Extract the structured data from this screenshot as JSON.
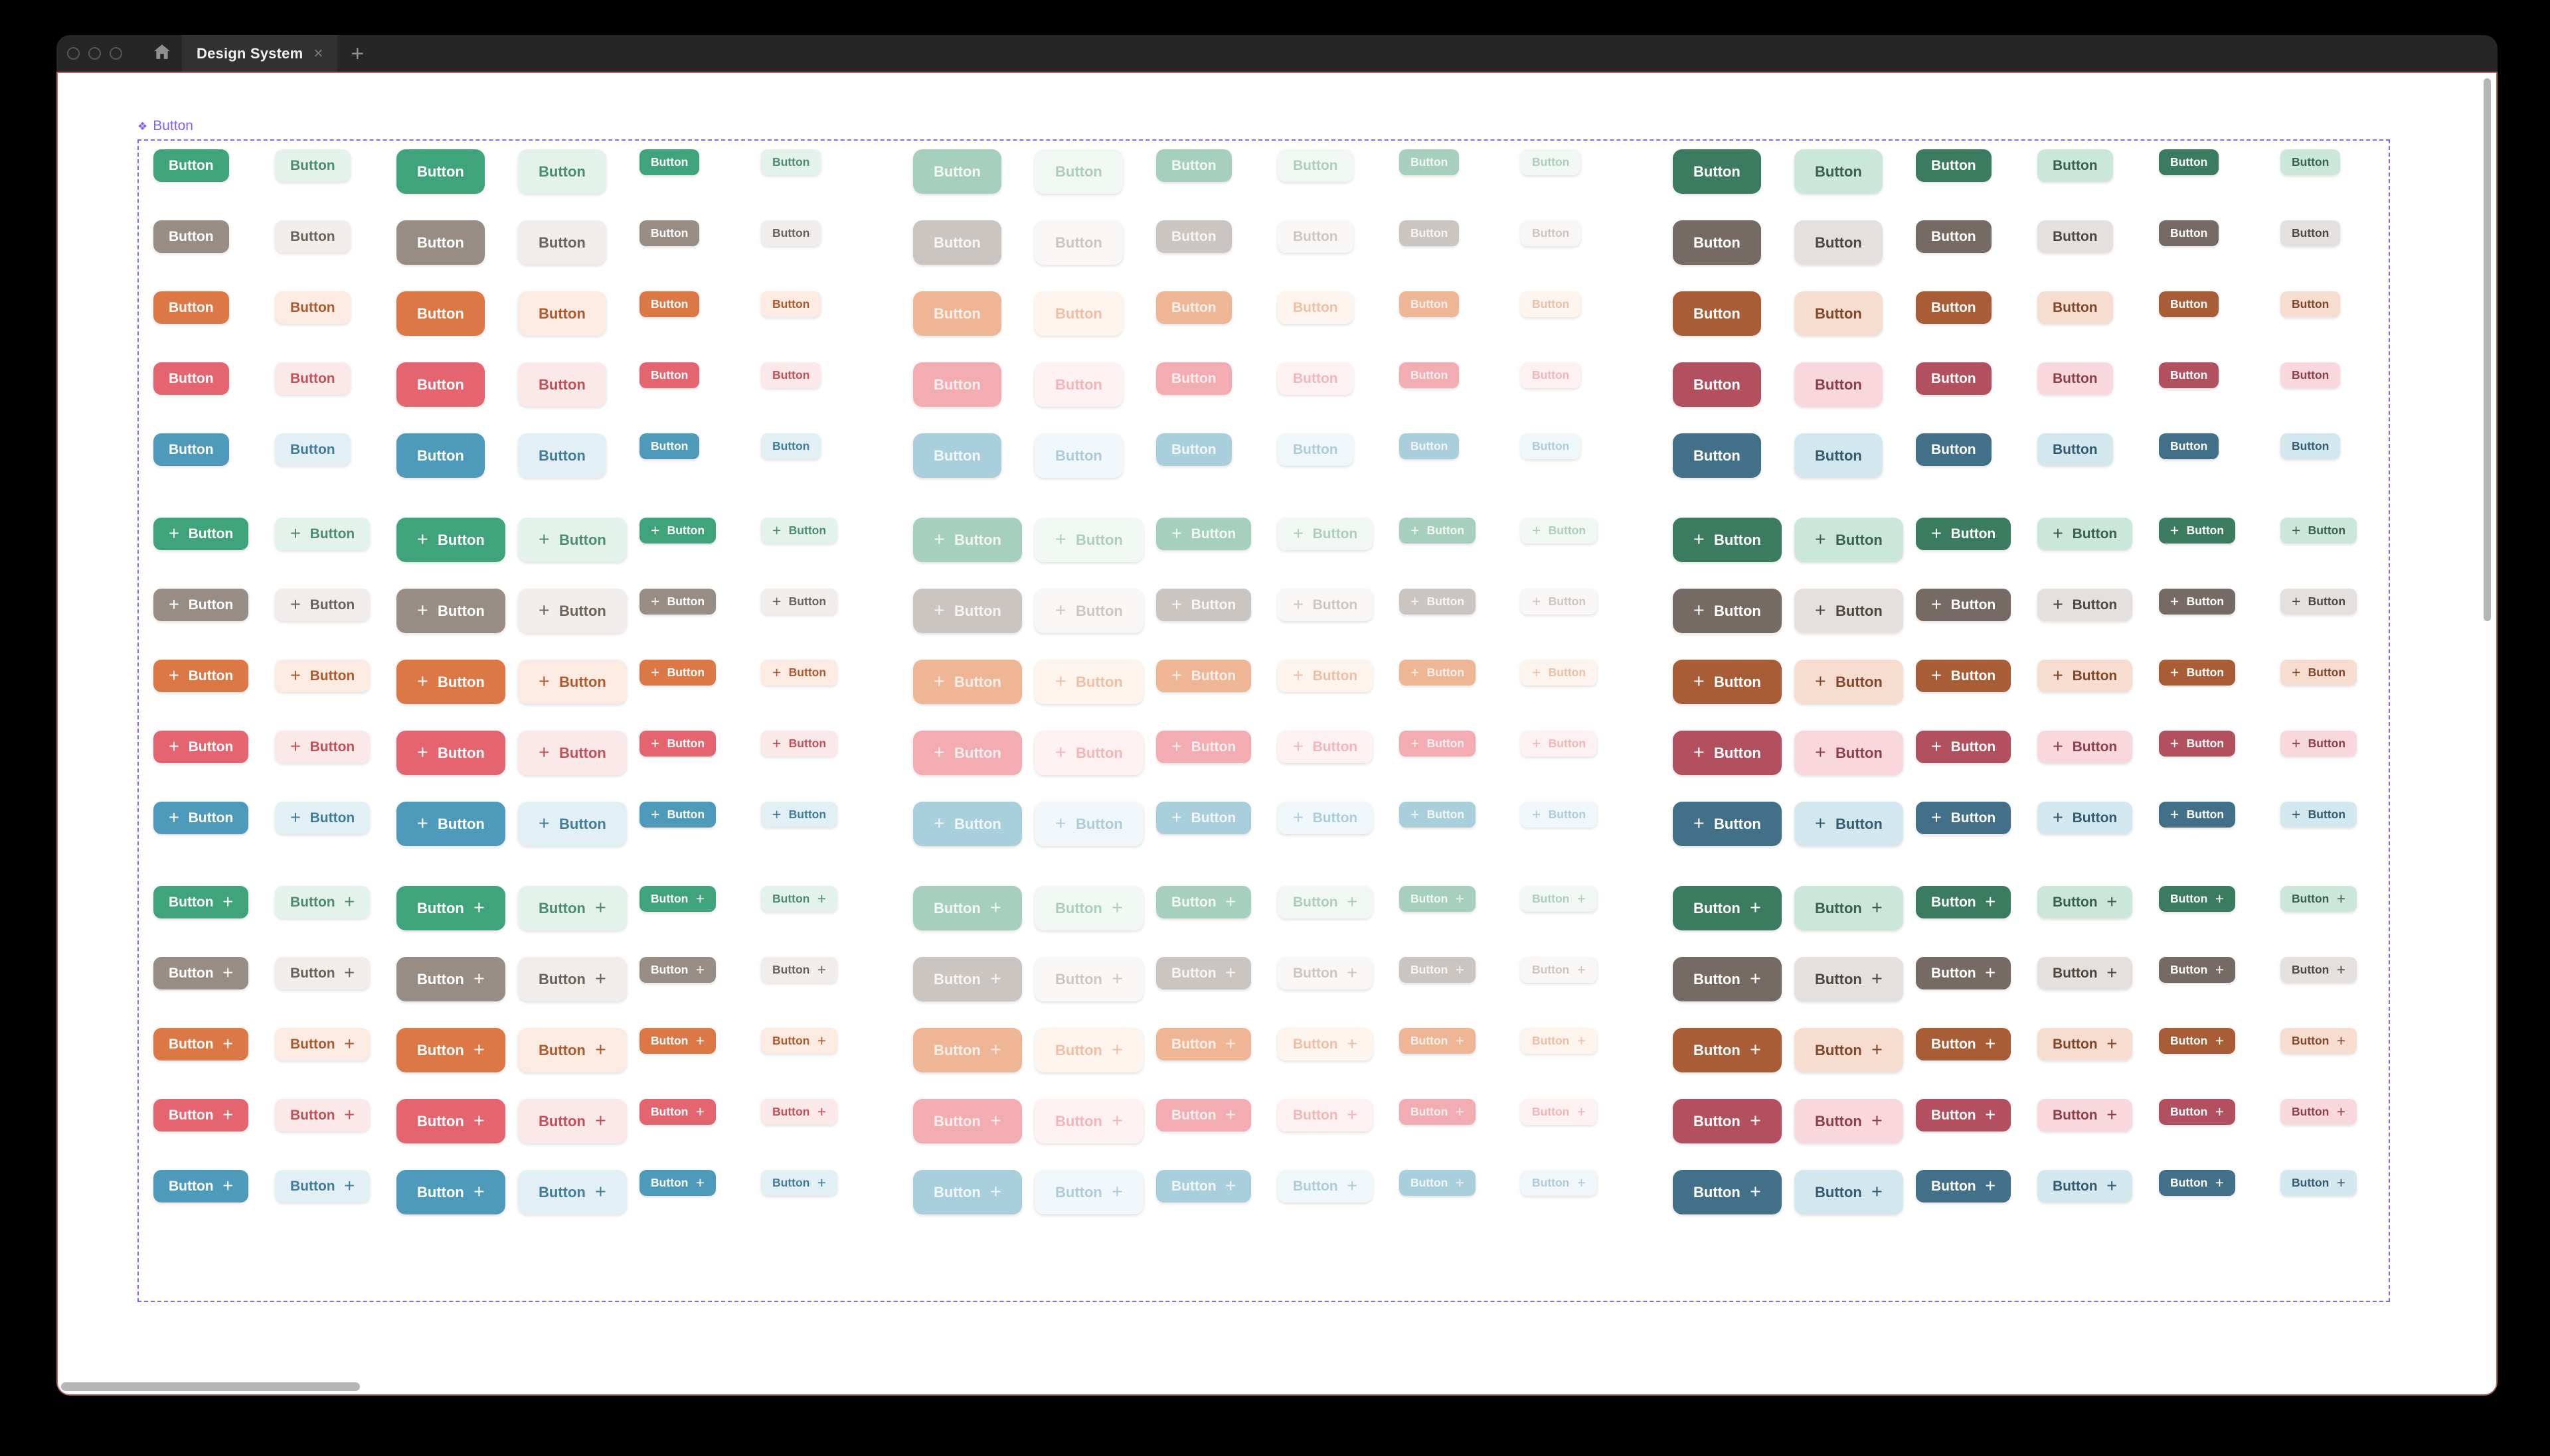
{
  "window": {
    "tab_title": "Design System",
    "tab_close_icon": "×",
    "new_tab_icon": "+",
    "traffic_lights": [
      "close",
      "minimize",
      "zoom"
    ],
    "titlebar_color": "#262626",
    "tab_color": "#313131"
  },
  "canvas": {
    "background": "#ffffff",
    "session_border_color": "#b4655e",
    "scrollbar_color": "#b5b5b5",
    "frame": {
      "label": "Button",
      "component_icon": "❖",
      "accent_color": "#7b61ff"
    }
  },
  "button_component": {
    "label": "Button",
    "plus_icon": "+",
    "row_groups": [
      {
        "name": "text-only",
        "icon_position": "none"
      },
      {
        "name": "leading-icon",
        "icon_position": "leading"
      },
      {
        "name": "trailing-icon",
        "icon_position": "trailing"
      }
    ],
    "columns": [
      {
        "state": "default",
        "size": "m",
        "variant": "solid"
      },
      {
        "state": "default",
        "size": "m",
        "variant": "tonal"
      },
      {
        "state": "default",
        "size": "l",
        "variant": "solid"
      },
      {
        "state": "default",
        "size": "l",
        "variant": "tonal"
      },
      {
        "state": "default",
        "size": "s",
        "variant": "solid"
      },
      {
        "state": "default",
        "size": "s",
        "variant": "tonal"
      },
      {
        "state": "disabled",
        "size": "l",
        "variant": "solid"
      },
      {
        "state": "disabled",
        "size": "l",
        "variant": "tonal"
      },
      {
        "state": "disabled",
        "size": "m",
        "variant": "solid"
      },
      {
        "state": "disabled",
        "size": "m",
        "variant": "tonal"
      },
      {
        "state": "disabled",
        "size": "s",
        "variant": "solid"
      },
      {
        "state": "disabled",
        "size": "s",
        "variant": "tonal"
      },
      {
        "state": "pressed",
        "size": "l",
        "variant": "solid"
      },
      {
        "state": "pressed",
        "size": "l",
        "variant": "tonal"
      },
      {
        "state": "pressed",
        "size": "m",
        "variant": "solid"
      },
      {
        "state": "pressed",
        "size": "m",
        "variant": "tonal"
      },
      {
        "state": "pressed",
        "size": "s",
        "variant": "solid"
      },
      {
        "state": "pressed",
        "size": "s",
        "variant": "tonal"
      }
    ],
    "color_rows": [
      {
        "name": "green",
        "default": {
          "solid_bg": "#3FA37C",
          "solid_fg": "#FFFFFF",
          "tonal_bg": "#E3F2EB",
          "tonal_fg": "#4E8C72"
        },
        "disabled": {
          "solid_bg": "#A6CFBE",
          "solid_fg": "#F2F9F6",
          "tonal_bg": "#F1F8F4",
          "tonal_fg": "#ADCDC0"
        },
        "pressed": {
          "solid_bg": "#3B7B60",
          "solid_fg": "#FFFFFF",
          "tonal_bg": "#CBE7DA",
          "tonal_fg": "#3A614F"
        }
      },
      {
        "name": "gray",
        "default": {
          "solid_bg": "#978D85",
          "solid_fg": "#FFFFFF",
          "tonal_bg": "#F0EDEA",
          "tonal_fg": "#6A625C"
        },
        "disabled": {
          "solid_bg": "#CBC5C1",
          "solid_fg": "#F6F5F4",
          "tonal_bg": "#F8F7F6",
          "tonal_fg": "#CBC6C2"
        },
        "pressed": {
          "solid_bg": "#756A64",
          "solid_fg": "#FFFFFF",
          "tonal_bg": "#E4E0DD",
          "tonal_fg": "#4E4741"
        }
      },
      {
        "name": "orange",
        "default": {
          "solid_bg": "#DB7845",
          "solid_fg": "#FFFFFF",
          "tonal_bg": "#FBEBE2",
          "tonal_fg": "#AE5A2F"
        },
        "disabled": {
          "solid_bg": "#EFB696",
          "solid_fg": "#FBF0E9",
          "tonal_bg": "#FDF4EE",
          "tonal_fg": "#EFBFA5"
        },
        "pressed": {
          "solid_bg": "#A85D36",
          "solid_fg": "#FFFFFF",
          "tonal_bg": "#F6DDD0",
          "tonal_fg": "#81472A"
        }
      },
      {
        "name": "red",
        "default": {
          "solid_bg": "#E4656F",
          "solid_fg": "#FFFFFF",
          "tonal_bg": "#FBE8E9",
          "tonal_fg": "#C25058"
        },
        "disabled": {
          "solid_bg": "#F2ACB2",
          "solid_fg": "#FCEFF0",
          "tonal_bg": "#FDF1F2",
          "tonal_fg": "#F2B6BA"
        },
        "pressed": {
          "solid_bg": "#B25060",
          "solid_fg": "#FFFFFF",
          "tonal_bg": "#F8D8DC",
          "tonal_fg": "#8C3F4A"
        }
      },
      {
        "name": "blue",
        "default": {
          "solid_bg": "#4D9ABA",
          "solid_fg": "#FFFFFF",
          "tonal_bg": "#E2F0F5",
          "tonal_fg": "#417D98"
        },
        "disabled": {
          "solid_bg": "#A9CEDC",
          "solid_fg": "#F1F7FA",
          "tonal_bg": "#F0F7FA",
          "tonal_fg": "#AECCD8"
        },
        "pressed": {
          "solid_bg": "#427089",
          "solid_fg": "#FFFFFF",
          "tonal_bg": "#D3E7EE",
          "tonal_fg": "#365A70"
        }
      }
    ]
  }
}
